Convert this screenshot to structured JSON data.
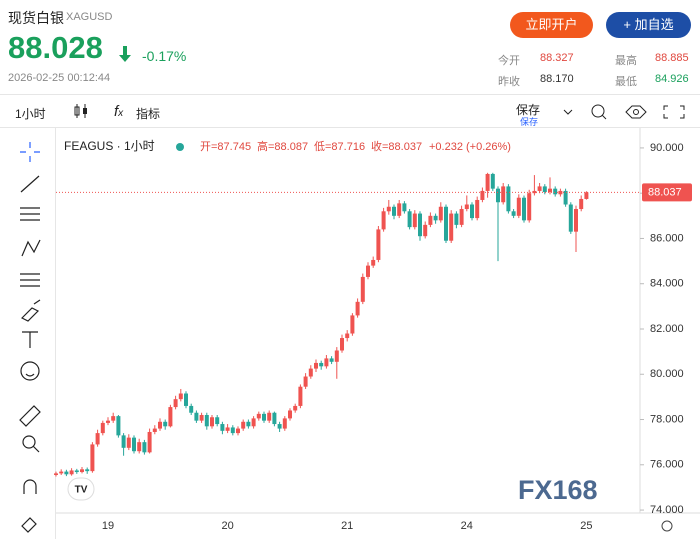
{
  "header": {
    "title": "现货白银",
    "symbol": "XAGUSD",
    "price": "88.028",
    "change": "-0.17%",
    "timestamp": "2026-02-25 00:12:44",
    "buttons": [
      "立即开户",
      "+ 加自选"
    ],
    "stats": [
      {
        "label": "今开",
        "value": "88.327"
      },
      {
        "label": "最高",
        "value": "88.885"
      },
      {
        "label": "昨收",
        "value": "88.170"
      },
      {
        "label": "最低",
        "value": "84.926"
      }
    ]
  },
  "toolbar": {
    "interval": "1小时",
    "indicators": "指标",
    "save": "保存",
    "save_sub": "保存"
  },
  "legend": {
    "symbol": "FEAGUS · 1小时",
    "ohlc": [
      "开=87.745",
      "高=88.087",
      "低=87.716",
      "收=88.037"
    ],
    "change": "+0.232 (+0.26%)"
  },
  "watermark": "FX168",
  "chart_data": {
    "type": "candlestick",
    "categories": [
      null,
      null,
      null,
      null,
      null,
      null,
      null,
      null,
      null,
      null,
      "19",
      null,
      null,
      null,
      null,
      null,
      null,
      null,
      null,
      null,
      null,
      null,
      null,
      null,
      null,
      null,
      null,
      null,
      null,
      null,
      null,
      null,
      null,
      "20",
      null,
      null,
      null,
      null,
      null,
      null,
      null,
      null,
      null,
      null,
      null,
      null,
      null,
      null,
      null,
      null,
      null,
      null,
      null,
      null,
      null,
      null,
      "21",
      null,
      null,
      null,
      null,
      null,
      null,
      null,
      null,
      null,
      null,
      null,
      null,
      null,
      null,
      null,
      null,
      null,
      null,
      null,
      null,
      null,
      null,
      "24",
      null,
      null,
      null,
      null,
      null,
      null,
      null,
      null,
      null,
      null,
      null,
      null,
      null,
      null,
      null,
      null,
      null,
      null,
      null,
      null,
      null,
      null,
      "25"
    ],
    "open": [
      75.55,
      75.62,
      75.7,
      75.58,
      75.75,
      75.68,
      75.8,
      75.72,
      76.9,
      77.4,
      77.85,
      77.95,
      78.15,
      77.3,
      76.75,
      77.2,
      76.6,
      77.0,
      76.55,
      77.45,
      77.6,
      77.9,
      77.7,
      78.55,
      78.9,
      79.15,
      78.6,
      78.3,
      77.95,
      78.2,
      77.7,
      78.1,
      77.8,
      77.5,
      77.65,
      77.4,
      77.6,
      77.9,
      77.7,
      78.05,
      78.25,
      77.95,
      78.3,
      77.8,
      77.6,
      78.05,
      78.4,
      78.6,
      79.45,
      79.9,
      80.25,
      80.5,
      80.35,
      80.7,
      80.55,
      81.05,
      81.6,
      81.8,
      82.6,
      83.2,
      84.3,
      84.8,
      85.05,
      86.4,
      87.2,
      87.4,
      87.0,
      87.55,
      87.2,
      86.5,
      87.1,
      86.1,
      86.6,
      87.0,
      86.8,
      87.4,
      85.9,
      87.1,
      86.6,
      87.3,
      87.5,
      86.9,
      87.7,
      88.1,
      88.85,
      88.2,
      87.6,
      88.3,
      87.2,
      87.0,
      87.8,
      86.8,
      88.0,
      88.1,
      88.3,
      88.05,
      88.2,
      87.95,
      88.1,
      87.5,
      86.3,
      87.3,
      87.745
    ],
    "high": [
      75.7,
      75.8,
      75.78,
      75.85,
      75.82,
      75.9,
      75.88,
      77.0,
      77.55,
      77.95,
      78.1,
      78.3,
      78.2,
      77.4,
      77.35,
      77.3,
      77.15,
      77.1,
      77.6,
      77.75,
      78.05,
      78.0,
      78.65,
      79.05,
      79.35,
      79.25,
      78.7,
      78.4,
      78.3,
      78.3,
      78.2,
      78.2,
      77.9,
      77.8,
      77.75,
      77.7,
      78.0,
      78.0,
      78.15,
      78.35,
      78.35,
      78.4,
      78.35,
      77.9,
      78.15,
      78.5,
      78.7,
      79.55,
      80.05,
      80.4,
      80.65,
      80.6,
      80.85,
      80.8,
      81.2,
      81.75,
      81.95,
      82.7,
      83.35,
      84.45,
      84.95,
      85.2,
      86.55,
      87.35,
      87.7,
      87.5,
      87.7,
      87.65,
      87.3,
      87.25,
      87.2,
      86.75,
      87.15,
      87.1,
      87.6,
      87.5,
      87.25,
      87.2,
      87.45,
      87.9,
      87.6,
      87.85,
      88.25,
      88.9,
      88.9,
      88.3,
      88.45,
      88.4,
      87.3,
      87.95,
      87.9,
      88.15,
      88.8,
      88.45,
      88.4,
      88.7,
      88.3,
      88.2,
      88.2,
      87.6,
      87.45,
      87.9,
      88.087
    ],
    "low": [
      75.48,
      75.55,
      75.5,
      75.52,
      75.6,
      75.62,
      75.6,
      75.65,
      76.8,
      77.3,
      77.75,
      77.85,
      77.2,
      76.4,
      76.65,
      76.5,
      76.5,
      76.45,
      76.5,
      77.35,
      77.5,
      77.55,
      77.65,
      78.45,
      78.8,
      78.5,
      78.2,
      77.85,
      77.85,
      77.55,
      77.6,
      77.7,
      77.35,
      77.4,
      77.3,
      77.3,
      77.5,
      77.6,
      77.6,
      77.95,
      77.85,
      77.85,
      77.7,
      77.45,
      77.5,
      77.95,
      78.3,
      78.5,
      79.35,
      79.8,
      80.1,
      80.2,
      80.25,
      80.45,
      79.8,
      80.95,
      81.45,
      81.7,
      82.5,
      83.1,
      84.2,
      84.7,
      84.95,
      86.3,
      87.05,
      86.85,
      86.9,
      87.1,
      86.4,
      86.4,
      85.9,
      86.0,
      86.5,
      86.65,
      86.7,
      85.8,
      85.8,
      86.45,
      86.5,
      87.2,
      86.8,
      86.8,
      87.6,
      87.8,
      88.1,
      85.0,
      87.5,
      87.1,
      86.9,
      86.9,
      86.7,
      86.7,
      87.9,
      88.0,
      87.95,
      87.95,
      87.85,
      87.85,
      87.4,
      86.2,
      85.4,
      87.2,
      87.716
    ],
    "close": [
      75.62,
      75.7,
      75.58,
      75.75,
      75.68,
      75.8,
      75.72,
      76.9,
      77.4,
      77.85,
      77.95,
      78.15,
      77.3,
      76.75,
      77.2,
      76.6,
      77.0,
      76.55,
      77.45,
      77.6,
      77.9,
      77.7,
      78.55,
      78.9,
      79.15,
      78.6,
      78.3,
      77.95,
      78.2,
      77.7,
      78.1,
      77.8,
      77.5,
      77.65,
      77.4,
      77.6,
      77.9,
      77.7,
      78.05,
      78.25,
      77.95,
      78.3,
      77.8,
      77.6,
      78.05,
      78.4,
      78.6,
      79.45,
      79.9,
      80.25,
      80.5,
      80.35,
      80.7,
      80.55,
      81.05,
      81.6,
      81.8,
      82.6,
      83.2,
      84.3,
      84.8,
      85.05,
      86.4,
      87.2,
      87.4,
      87.0,
      87.55,
      87.2,
      86.5,
      87.1,
      86.1,
      86.6,
      87.0,
      86.8,
      87.4,
      85.9,
      87.1,
      86.6,
      87.3,
      87.5,
      86.9,
      87.7,
      88.1,
      88.85,
      88.2,
      87.6,
      88.3,
      87.2,
      87.0,
      87.8,
      86.8,
      88.0,
      88.1,
      88.3,
      88.05,
      88.2,
      87.95,
      88.1,
      87.5,
      86.3,
      87.3,
      87.745,
      88.037
    ],
    "up_color": "#ef5350",
    "down_color": "#26a69a",
    "ylim": [
      73.87,
      90.88
    ],
    "yticks": [
      {
        "value": 74,
        "label": "74.000"
      },
      {
        "value": 76,
        "label": "76.000"
      },
      {
        "value": 78,
        "label": "78.000"
      },
      {
        "value": 80,
        "label": "80.000"
      },
      {
        "value": 82,
        "label": "82.000"
      },
      {
        "value": 84,
        "label": "84.000"
      },
      {
        "value": 86,
        "label": "86.000"
      },
      {
        "value": 88,
        "label": "88.000"
      },
      {
        "value": 90,
        "label": "90.000"
      }
    ],
    "grid": false,
    "last_price_line": true
  }
}
